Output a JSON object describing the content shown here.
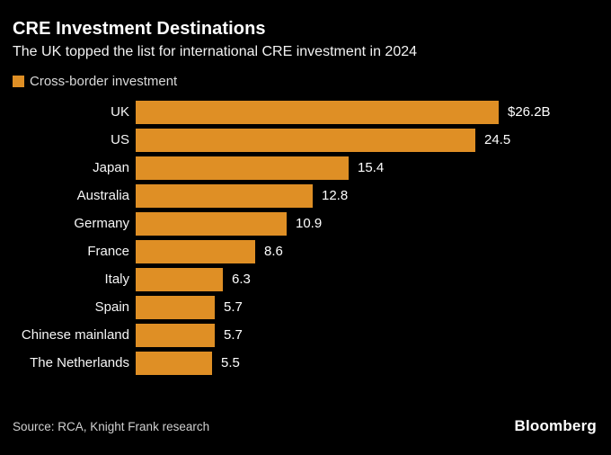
{
  "header": {
    "title": "CRE Investment Destinations",
    "subtitle": "The UK topped the list for international CRE investment in 2024"
  },
  "legend": {
    "label": "Cross-border investment"
  },
  "chart_data": {
    "type": "bar",
    "orientation": "horizontal",
    "title": "CRE Investment Destinations",
    "subtitle": "The UK topped the list for international CRE investment in 2024",
    "series_name": "Cross-border investment",
    "categories": [
      "UK",
      "US",
      "Japan",
      "Australia",
      "Germany",
      "France",
      "Italy",
      "Spain",
      "Chinese mainland",
      "The Netherlands"
    ],
    "values": [
      26.2,
      24.5,
      15.4,
      12.8,
      10.9,
      8.6,
      6.3,
      5.7,
      5.7,
      5.5
    ],
    "value_labels": [
      "$26.2B",
      "24.5",
      "15.4",
      "12.8",
      "10.9",
      "8.6",
      "6.3",
      "5.7",
      "5.7",
      "5.5"
    ],
    "xlim": [
      0,
      26.2
    ],
    "grid": false,
    "legend_position": "top-left",
    "bar_color": "#DF8F25"
  },
  "footer": {
    "source": "Source: RCA, Knight Frank research",
    "brand": "Bloomberg"
  },
  "colors": {
    "background": "#000000",
    "text": "#FFFFFF",
    "muted_text": "#D0D0D0",
    "accent": "#DF8F25"
  }
}
